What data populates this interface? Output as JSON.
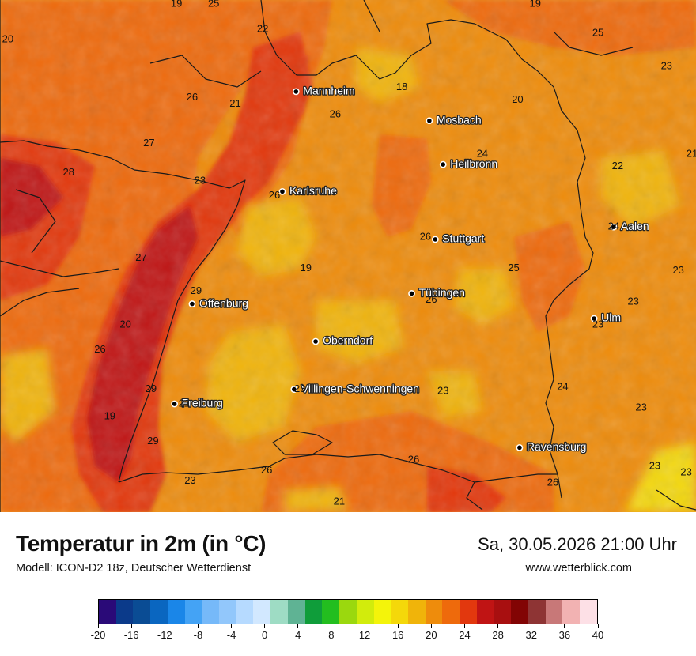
{
  "map": {
    "cities": [
      {
        "name": "Mannheim",
        "x": 8.47,
        "y": 49.49
      },
      {
        "name": "Mosbach",
        "x": 9.15,
        "y": 49.35
      },
      {
        "name": "Heilbronn",
        "x": 9.22,
        "y": 49.14
      },
      {
        "name": "Karlsruhe",
        "x": 8.4,
        "y": 49.01
      },
      {
        "name": "Aalen",
        "x": 10.09,
        "y": 48.84
      },
      {
        "name": "Stuttgart",
        "x": 9.18,
        "y": 48.78
      },
      {
        "name": "Tübingen",
        "x": 9.06,
        "y": 48.52
      },
      {
        "name": "Offenburg",
        "x": 7.94,
        "y": 48.47
      },
      {
        "name": "Ulm",
        "x": 9.99,
        "y": 48.4
      },
      {
        "name": "Oberndorf",
        "x": 8.57,
        "y": 48.29
      },
      {
        "name": "Villingen-Schwenningen",
        "x": 8.46,
        "y": 48.06
      },
      {
        "name": "Freiburg",
        "x": 7.85,
        "y": 47.99
      },
      {
        "name": "Ravensburg",
        "x": 9.61,
        "y": 47.78
      }
    ],
    "values": [
      {
        "v": "19",
        "x": 7.86,
        "y": 49.91
      },
      {
        "v": "25",
        "x": 8.05,
        "y": 49.91
      },
      {
        "v": "19",
        "x": 9.69,
        "y": 49.91
      },
      {
        "v": "25",
        "x": 10.01,
        "y": 49.77
      },
      {
        "v": "20",
        "x": 7.0,
        "y": 49.74
      },
      {
        "v": "22",
        "x": 8.3,
        "y": 49.79
      },
      {
        "v": "23",
        "x": 10.36,
        "y": 49.61
      },
      {
        "v": "18",
        "x": 9.01,
        "y": 49.51
      },
      {
        "v": "26",
        "x": 7.94,
        "y": 49.46
      },
      {
        "v": "21",
        "x": 8.16,
        "y": 49.43
      },
      {
        "v": "20",
        "x": 9.6,
        "y": 49.45
      },
      {
        "v": "26",
        "x": 8.67,
        "y": 49.38
      },
      {
        "v": "27",
        "x": 7.72,
        "y": 49.24
      },
      {
        "v": "24",
        "x": 9.42,
        "y": 49.19
      },
      {
        "v": "21",
        "x": 10.49,
        "y": 49.19
      },
      {
        "v": "28",
        "x": 7.31,
        "y": 49.1
      },
      {
        "v": "22",
        "x": 10.11,
        "y": 49.13
      },
      {
        "v": "23",
        "x": 7.98,
        "y": 49.06
      },
      {
        "v": "26",
        "x": 8.36,
        "y": 48.99
      },
      {
        "v": "26",
        "x": 9.13,
        "y": 48.79
      },
      {
        "v": "24",
        "x": 10.09,
        "y": 48.84
      },
      {
        "v": "27",
        "x": 7.68,
        "y": 48.69
      },
      {
        "v": "19",
        "x": 8.52,
        "y": 48.64
      },
      {
        "v": "25",
        "x": 9.58,
        "y": 48.64
      },
      {
        "v": "23",
        "x": 10.42,
        "y": 48.63
      },
      {
        "v": "29",
        "x": 7.96,
        "y": 48.53
      },
      {
        "v": "23",
        "x": 10.19,
        "y": 48.48
      },
      {
        "v": "26",
        "x": 9.16,
        "y": 48.49
      },
      {
        "v": "20",
        "x": 7.6,
        "y": 48.37
      },
      {
        "v": "23",
        "x": 10.01,
        "y": 48.37
      },
      {
        "v": "26",
        "x": 7.47,
        "y": 48.25
      },
      {
        "v": "29",
        "x": 7.73,
        "y": 48.06
      },
      {
        "v": "24",
        "x": 9.83,
        "y": 48.07
      },
      {
        "v": "23",
        "x": 8.49,
        "y": 48.06
      },
      {
        "v": "23",
        "x": 9.22,
        "y": 48.05
      },
      {
        "v": "21",
        "x": 7.9,
        "y": 47.99
      },
      {
        "v": "23",
        "x": 10.23,
        "y": 47.97
      },
      {
        "v": "19",
        "x": 7.52,
        "y": 47.93
      },
      {
        "v": "29",
        "x": 7.74,
        "y": 47.81
      },
      {
        "v": "23",
        "x": 10.3,
        "y": 47.69
      },
      {
        "v": "26",
        "x": 8.32,
        "y": 47.67
      },
      {
        "v": "26",
        "x": 9.07,
        "y": 47.72
      },
      {
        "v": "23",
        "x": 10.46,
        "y": 47.66
      },
      {
        "v": "23",
        "x": 7.93,
        "y": 47.62
      },
      {
        "v": "26",
        "x": 9.78,
        "y": 47.61
      },
      {
        "v": "21",
        "x": 8.69,
        "y": 47.52
      }
    ]
  },
  "title": "Temperatur in 2m (in °C)",
  "model": "Modell: ICON-D2 18z, Deutscher Wetterdienst",
  "datetime": "Sa, 30.05.2026 21:00 Uhr",
  "website": "www.wetterblick.com",
  "legend": {
    "colors": [
      "#2a0a78",
      "#0b3a8a",
      "#0a4c94",
      "#0a66c0",
      "#1a86e8",
      "#44a3f5",
      "#76b9f9",
      "#92c7fb",
      "#b6daff",
      "#d2e8ff",
      "#9edcc4",
      "#5fb394",
      "#0f9d3a",
      "#23be1f",
      "#9bd80e",
      "#d2ec0c",
      "#f4f40a",
      "#f4d80a",
      "#f0b40a",
      "#ee8c0c",
      "#ee6a0c",
      "#e2380e",
      "#c01414",
      "#a80f10",
      "#820404",
      "#8e3434",
      "#c87878",
      "#f2b2b2",
      "#fde0e6"
    ],
    "tick_labels": [
      "-20",
      "-16",
      "-12",
      "-8",
      "-4",
      "0",
      "4",
      "8",
      "12",
      "16",
      "20",
      "24",
      "28",
      "32",
      "36",
      "40"
    ]
  }
}
